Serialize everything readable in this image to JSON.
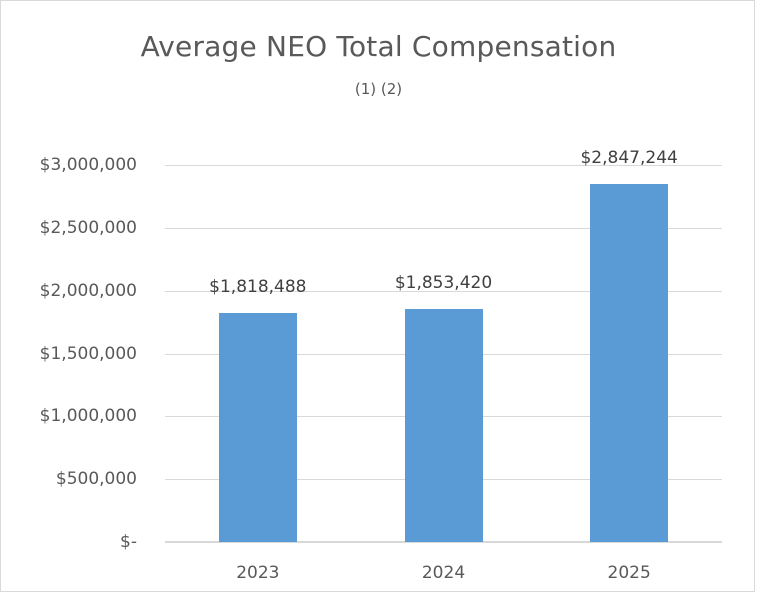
{
  "chart_data": {
    "type": "bar",
    "title": "Average NEO Total Compensation",
    "subtitle": "(1) (2)",
    "categories": [
      "2023",
      "2024",
      "2025"
    ],
    "values": [
      1818488,
      1853420,
      2847244
    ],
    "data_labels": [
      "$1,818,488",
      "$1,853,420",
      "$2,847,244"
    ],
    "xlabel": "",
    "ylabel": "",
    "ylim": [
      0,
      3000000
    ],
    "yticks": [
      0,
      500000,
      1000000,
      1500000,
      2000000,
      2500000,
      3000000
    ],
    "ytick_labels": [
      "$-",
      "$500,000",
      "$1,000,000",
      "$1,500,000",
      "$2,000,000",
      "$2,500,000",
      "$3,000,000"
    ],
    "grid": true,
    "legend": "none",
    "bar_color": "#5b9bd5"
  }
}
